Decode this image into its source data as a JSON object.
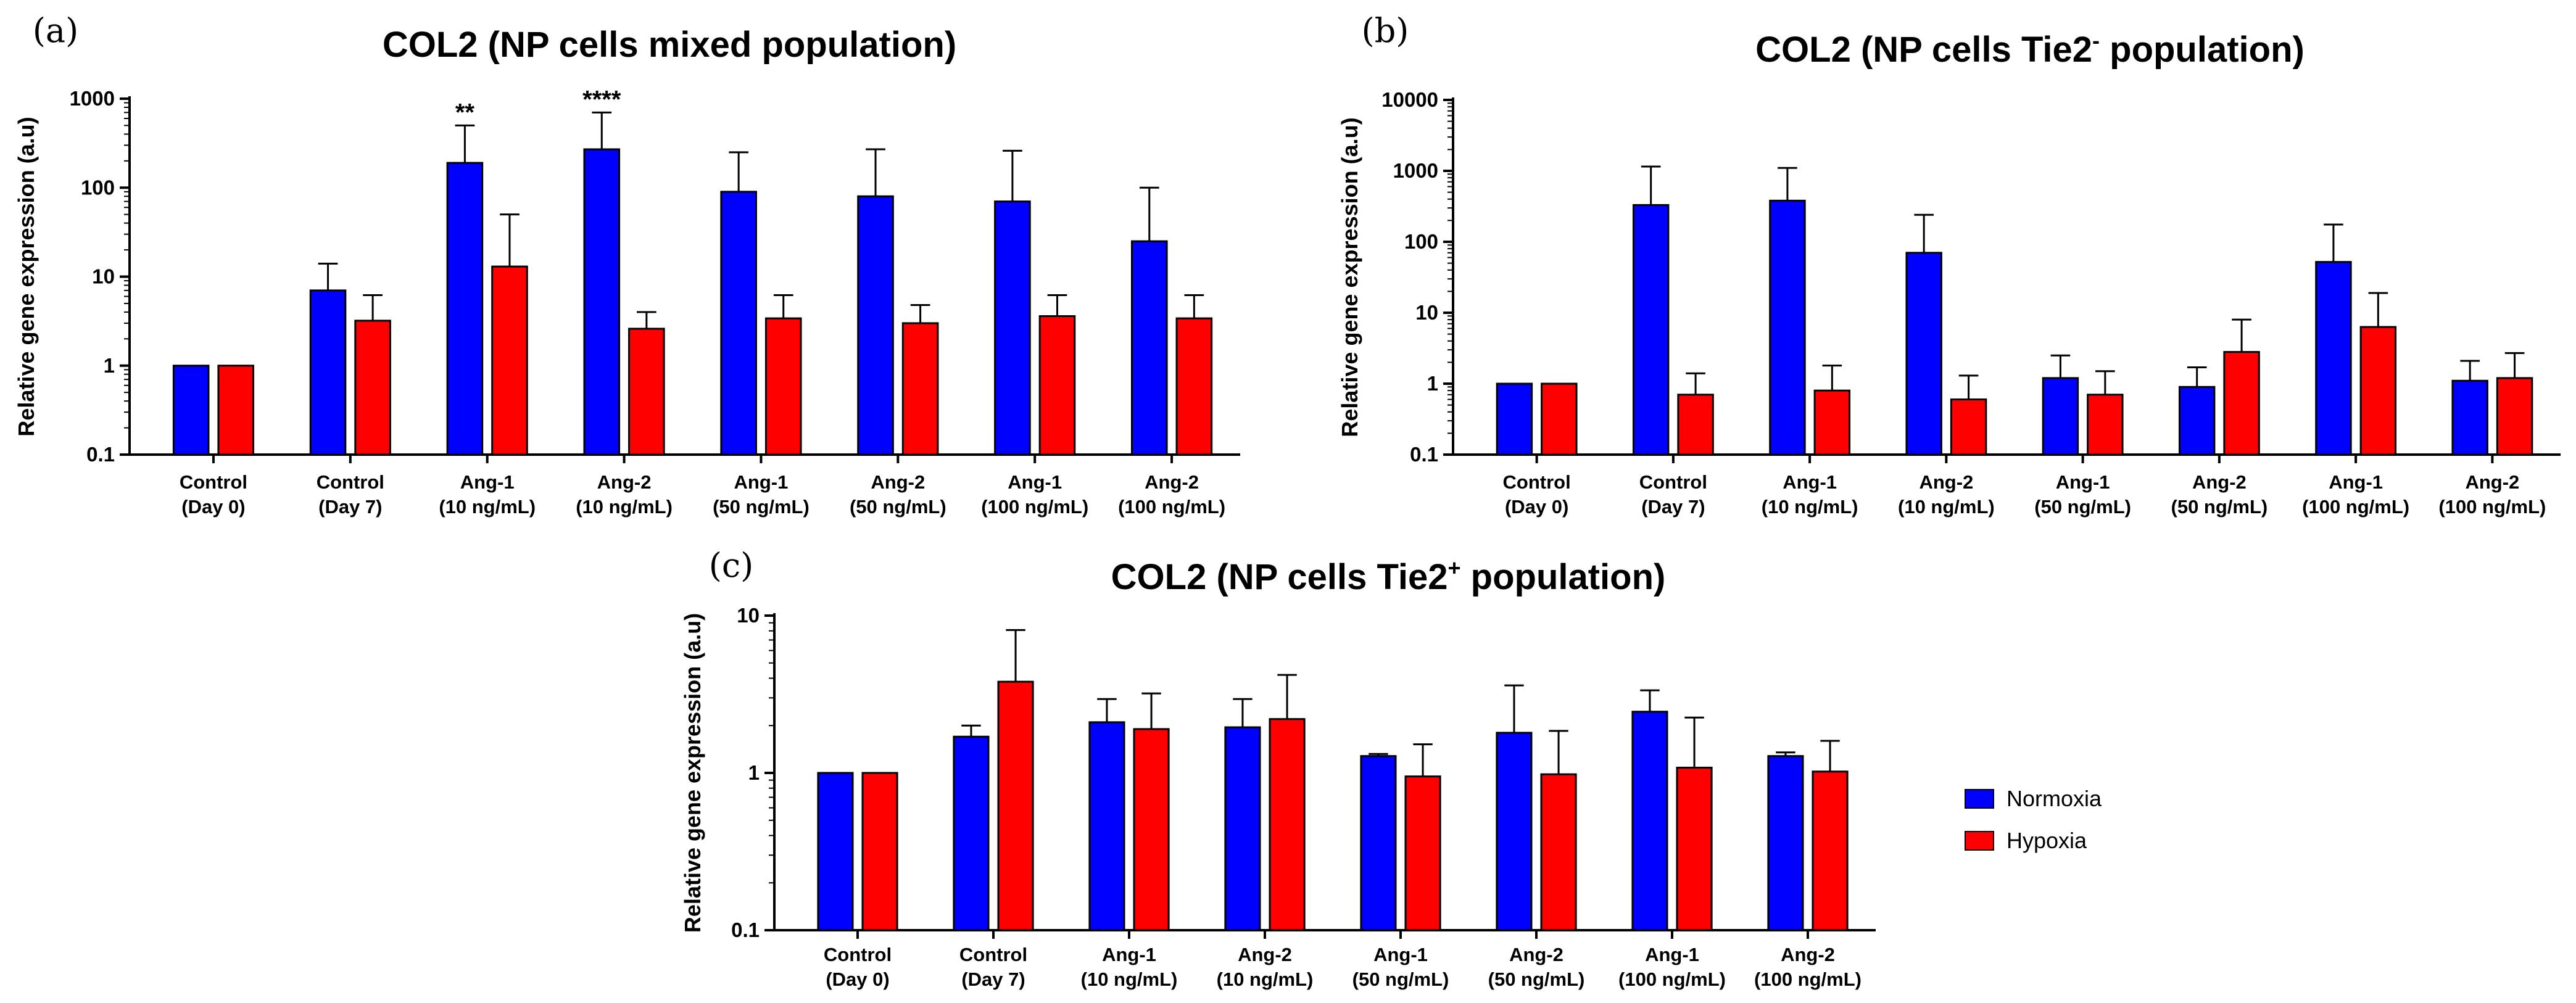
{
  "colors": {
    "Normoxia": "#0000ff",
    "Hypoxia": "#ff0000"
  },
  "legend": {
    "items": [
      "Normoxia",
      "Hypoxia"
    ]
  },
  "chart_data": [
    {
      "panel": "(a)",
      "type": "bar",
      "title_main": "COL2 (NP cells mixed population)",
      "title_sup": "",
      "title_tail": "",
      "ylabel": "Relative gene expression (a.u)",
      "yscale": "log",
      "ylim": [
        0.1,
        1000
      ],
      "yticks": [
        0.1,
        1,
        10,
        100,
        1000
      ],
      "ytick_labels": [
        "0.1",
        "1",
        "10",
        "100",
        "1000"
      ],
      "categories": [
        [
          "Control",
          "(Day 0)"
        ],
        [
          "Control",
          "(Day 7)"
        ],
        [
          "Ang-1",
          "(10 ng/mL)"
        ],
        [
          "Ang-2",
          "(10 ng/mL)"
        ],
        [
          "Ang-1",
          "(50 ng/mL)"
        ],
        [
          "Ang-2",
          "(50 ng/mL)"
        ],
        [
          "Ang-1",
          "(100 ng/mL)"
        ],
        [
          "Ang-2",
          "(100 ng/mL)"
        ]
      ],
      "series": [
        {
          "name": "Normoxia",
          "values": [
            1,
            7,
            190,
            270,
            90,
            80,
            70,
            25
          ],
          "err_upper": [
            1,
            14,
            500,
            700,
            250,
            270,
            260,
            100
          ]
        },
        {
          "name": "Hypoxia",
          "values": [
            1,
            3.2,
            13,
            2.6,
            3.4,
            3.0,
            3.6,
            3.4
          ],
          "err_upper": [
            1,
            6.2,
            50,
            4.0,
            6.2,
            4.8,
            6.2,
            6.2
          ]
        }
      ],
      "significance": [
        {
          "category": 2,
          "series": "Normoxia",
          "label": "**"
        },
        {
          "category": 3,
          "series": "Normoxia",
          "label": "****"
        }
      ]
    },
    {
      "panel": "(b)",
      "type": "bar",
      "title_main": "COL2 (NP cells Tie2",
      "title_sup": "-",
      "title_tail": " population)",
      "ylabel": "Relative gene expression (a.u)",
      "yscale": "log",
      "ylim": [
        0.1,
        10000
      ],
      "yticks": [
        0.1,
        1,
        10,
        100,
        1000,
        10000
      ],
      "ytick_labels": [
        "0.1",
        "1",
        "10",
        "100",
        "1000",
        "10000"
      ],
      "categories": [
        [
          "Control",
          "(Day 0)"
        ],
        [
          "Control",
          "(Day 7)"
        ],
        [
          "Ang-1",
          "(10 ng/mL)"
        ],
        [
          "Ang-2",
          "(10 ng/mL)"
        ],
        [
          "Ang-1",
          "(50 ng/mL)"
        ],
        [
          "Ang-2",
          "(50 ng/mL)"
        ],
        [
          "Ang-1",
          "(100 ng/mL)"
        ],
        [
          "Ang-2",
          "(100 ng/mL)"
        ]
      ],
      "series": [
        {
          "name": "Normoxia",
          "values": [
            1,
            330,
            380,
            70,
            1.2,
            0.9,
            52,
            1.1
          ],
          "err_upper": [
            1,
            1150,
            1100,
            240,
            2.5,
            1.7,
            175,
            2.1
          ]
        },
        {
          "name": "Hypoxia",
          "values": [
            1,
            0.7,
            0.8,
            0.6,
            0.7,
            2.8,
            6.3,
            1.2
          ],
          "err_upper": [
            1,
            1.4,
            1.8,
            1.3,
            1.5,
            8.0,
            19,
            2.7
          ]
        }
      ],
      "significance": []
    },
    {
      "panel": "(c)",
      "type": "bar",
      "title_main": "COL2 (NP cells Tie2",
      "title_sup": "+",
      "title_tail": " population)",
      "ylabel": "Relative gene expression (a.u)",
      "yscale": "log",
      "ylim": [
        0.1,
        10
      ],
      "yticks": [
        0.1,
        1,
        10
      ],
      "ytick_labels": [
        "0.1",
        "1",
        "10"
      ],
      "categories": [
        [
          "Control",
          "(Day 0)"
        ],
        [
          "Control",
          "(Day 7)"
        ],
        [
          "Ang-1",
          "(10 ng/mL)"
        ],
        [
          "Ang-2",
          "(10 ng/mL)"
        ],
        [
          "Ang-1",
          "(50 ng/mL)"
        ],
        [
          "Ang-2",
          "(50 ng/mL)"
        ],
        [
          "Ang-1",
          "(100 ng/mL)"
        ],
        [
          "Ang-2",
          "(100 ng/mL)"
        ]
      ],
      "series": [
        {
          "name": "Normoxia",
          "values": [
            1,
            1.7,
            2.1,
            1.95,
            1.28,
            1.8,
            2.45,
            1.28
          ],
          "err_upper": [
            1,
            2.0,
            2.95,
            2.95,
            1.32,
            3.6,
            3.35,
            1.35
          ]
        },
        {
          "name": "Hypoxia",
          "values": [
            1,
            3.8,
            1.9,
            2.2,
            0.95,
            0.98,
            1.08,
            1.02
          ],
          "err_upper": [
            1,
            8.1,
            3.2,
            4.2,
            1.52,
            1.85,
            2.25,
            1.6
          ]
        }
      ],
      "significance": []
    }
  ]
}
